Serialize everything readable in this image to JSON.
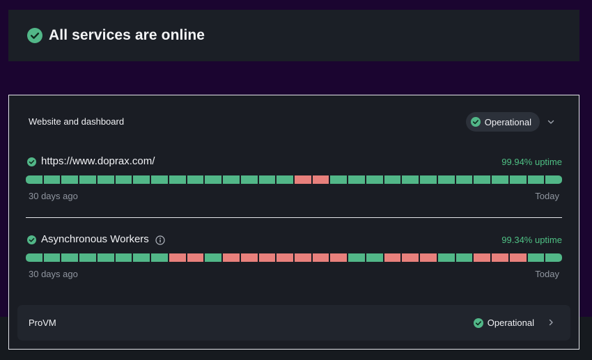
{
  "banner": {
    "title": "All services are online",
    "icon": "check-circle-icon"
  },
  "group": {
    "title": "Website and dashboard",
    "status": "Operational",
    "expand_icon": "chevron-down-icon"
  },
  "colors": {
    "ok": "#52b788",
    "down": "#e8807c",
    "uptime_text": "#4fc084"
  },
  "services": [
    {
      "name": "https://www.doprax.com/",
      "uptime": "99.94% uptime",
      "start_label": "30 days ago",
      "end_label": "Today",
      "has_info": false,
      "days": [
        "ok",
        "ok",
        "ok",
        "ok",
        "ok",
        "ok",
        "ok",
        "ok",
        "ok",
        "ok",
        "ok",
        "ok",
        "ok",
        "ok",
        "ok",
        "down",
        "down",
        "ok",
        "ok",
        "ok",
        "ok",
        "ok",
        "ok",
        "ok",
        "ok",
        "ok",
        "ok",
        "ok",
        "ok",
        "ok"
      ]
    },
    {
      "name": "Asynchronous Workers",
      "uptime": "99.34% uptime",
      "start_label": "30 days ago",
      "end_label": "Today",
      "has_info": true,
      "days": [
        "ok",
        "ok",
        "ok",
        "ok",
        "ok",
        "ok",
        "ok",
        "ok",
        "down",
        "down",
        "ok",
        "down",
        "down",
        "down",
        "down",
        "down",
        "down",
        "down",
        "ok",
        "ok",
        "down",
        "down",
        "down",
        "ok",
        "ok",
        "down",
        "down",
        "down",
        "ok",
        "ok"
      ]
    }
  ],
  "provm": {
    "name": "ProVM",
    "status": "Operational",
    "icon": "chevron-right-icon"
  }
}
